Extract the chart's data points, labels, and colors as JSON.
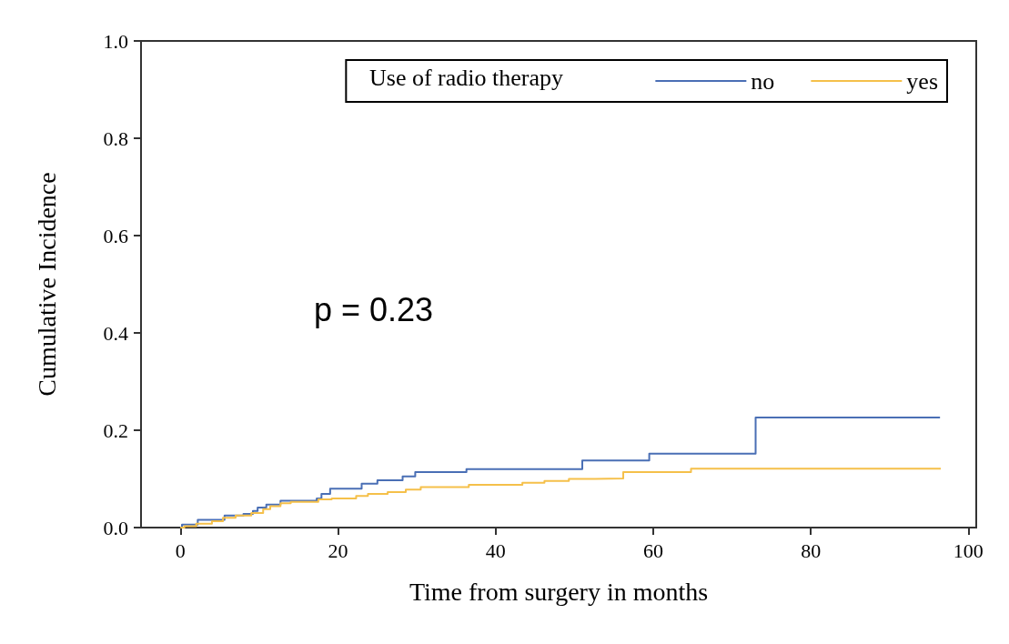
{
  "chart_data": {
    "type": "step",
    "xlabel": "Time from surgery in months",
    "ylabel": "Cumulative Incidence",
    "legend_title": "Use of radio therapy",
    "xlim": [
      -5,
      101
    ],
    "xticks": [
      0,
      20,
      40,
      60,
      80,
      100
    ],
    "ylim": [
      0,
      1.0
    ],
    "yticks": [
      {
        "value": 0,
        "label": "0.0"
      },
      {
        "value": 0.2,
        "label": "0.2"
      },
      {
        "value": 0.4,
        "label": "0.4"
      },
      {
        "value": 0.6,
        "label": "0.6"
      },
      {
        "value": 0.8,
        "label": "0.8"
      },
      {
        "value": 1.0,
        "label": "1.0"
      }
    ],
    "grid": false,
    "legend": "top right",
    "annotations": [
      "p = 0.23"
    ],
    "series": [
      {
        "name": "no",
        "color": "#4a6fb5",
        "x": [
          0,
          0.2,
          2.2,
          5.6,
          8,
          9.2,
          9.8,
          10.9,
          12.7,
          17.3,
          17.9,
          19,
          23,
          25,
          28.2,
          29.8,
          36.3,
          51,
          59.5,
          73,
          96.4
        ],
        "values": [
          0,
          0.006,
          0.016,
          0.025,
          0.028,
          0.034,
          0.041,
          0.047,
          0.055,
          0.06,
          0.069,
          0.08,
          0.09,
          0.097,
          0.105,
          0.114,
          0.12,
          0.138,
          0.152,
          0.226,
          0.226
        ]
      },
      {
        "name": "yes",
        "color": "#f5c04a",
        "x": [
          0,
          0.5,
          2,
          4,
          5.4,
          7,
          9,
          10.5,
          11.4,
          12.7,
          14,
          17.5,
          19.2,
          22.3,
          23.8,
          26.3,
          28.6,
          30.5,
          36.6,
          43.4,
          46.2,
          49.3,
          52.6,
          56.2,
          64.8,
          96.5
        ],
        "values": [
          0,
          0.003,
          0.008,
          0.013,
          0.02,
          0.025,
          0.03,
          0.038,
          0.044,
          0.05,
          0.053,
          0.058,
          0.06,
          0.065,
          0.069,
          0.073,
          0.078,
          0.083,
          0.088,
          0.092,
          0.096,
          0.1,
          0.101,
          0.114,
          0.121,
          0.121
        ]
      }
    ]
  }
}
